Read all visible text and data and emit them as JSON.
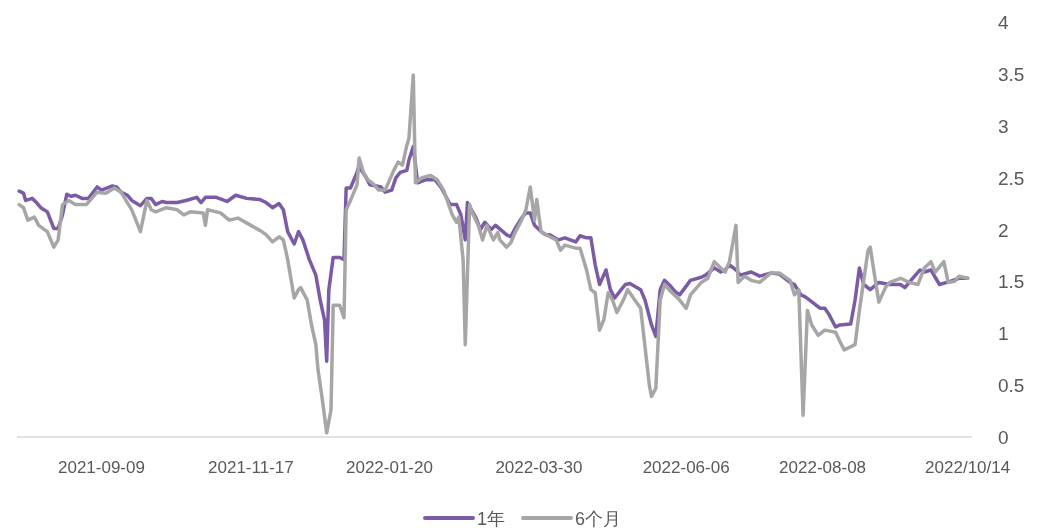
{
  "chart_data": {
    "type": "line",
    "xlim": [
      "2021-08-01",
      "2022-10-16"
    ],
    "ylim": [
      0,
      4
    ],
    "yticks": [
      0,
      0.5,
      1,
      1.5,
      2,
      2.5,
      3,
      3.5,
      4
    ],
    "xticks": [
      {
        "value": "2021-09-09",
        "label": "2021-09-09"
      },
      {
        "value": "2021-11-17",
        "label": "2021-11-17"
      },
      {
        "value": "2022-01-20",
        "label": "2022-01-20"
      },
      {
        "value": "2022-03-30",
        "label": "2022-03-30"
      },
      {
        "value": "2022-06-06",
        "label": "2022-06-06"
      },
      {
        "value": "2022-08-08",
        "label": "2022-08-08"
      },
      {
        "value": "2022-10-14",
        "label": "2022/10/14"
      }
    ],
    "grid": false,
    "legend": "bottom",
    "marker": "none",
    "line_style": "solid",
    "series": [
      {
        "name": "1年",
        "color": "#7b5aa6",
        "x": [
          "2021-08-02",
          "2021-08-04",
          "2021-08-05",
          "2021-08-08",
          "2021-08-10",
          "2021-08-12",
          "2021-08-15",
          "2021-08-18",
          "2021-08-20",
          "2021-08-22",
          "2021-08-24",
          "2021-08-26",
          "2021-08-28",
          "2021-08-31",
          "2021-09-03",
          "2021-09-07",
          "2021-09-09",
          "2021-09-14",
          "2021-09-16",
          "2021-09-18",
          "2021-09-21",
          "2021-09-23",
          "2021-09-27",
          "2021-09-30",
          "2021-10-02",
          "2021-10-04",
          "2021-10-07",
          "2021-10-09",
          "2021-10-14",
          "2021-10-18",
          "2021-10-23",
          "2021-10-25",
          "2021-10-27",
          "2021-11-01",
          "2021-11-06",
          "2021-11-10",
          "2021-11-15",
          "2021-11-21",
          "2021-11-24",
          "2021-11-27",
          "2021-11-30",
          "2021-12-02",
          "2021-12-04",
          "2021-12-07",
          "2021-12-09",
          "2021-12-11",
          "2021-12-14",
          "2021-12-17",
          "2021-12-19",
          "2021-12-21",
          "2021-12-22",
          "2021-12-23",
          "2021-12-25",
          "2021-12-28",
          "2021-12-30",
          "2021-12-31",
          "2022-01-02",
          "2022-01-05",
          "2022-01-06",
          "2022-01-07",
          "2022-01-09",
          "2022-01-11",
          "2022-01-14",
          "2022-01-16",
          "2022-01-18",
          "2022-01-21",
          "2022-01-23",
          "2022-01-25",
          "2022-01-28",
          "2022-01-29",
          "2022-01-31",
          "2022-02-02",
          "2022-02-06",
          "2022-02-10",
          "2022-02-13",
          "2022-02-15",
          "2022-02-17",
          "2022-02-20",
          "2022-02-22",
          "2022-02-24",
          "2022-02-25",
          "2022-03-01",
          "2022-03-03",
          "2022-03-05",
          "2022-03-08",
          "2022-03-10",
          "2022-03-15",
          "2022-03-17",
          "2022-03-19",
          "2022-03-22",
          "2022-03-24",
          "2022-03-26",
          "2022-03-28",
          "2022-03-31",
          "2022-04-02",
          "2022-04-04",
          "2022-04-08",
          "2022-04-11",
          "2022-04-16",
          "2022-04-18",
          "2022-04-21",
          "2022-04-23",
          "2022-04-25",
          "2022-04-27",
          "2022-04-30",
          "2022-05-02",
          "2022-05-04",
          "2022-05-07",
          "2022-05-09",
          "2022-05-11",
          "2022-05-16",
          "2022-05-18",
          "2022-05-21",
          "2022-05-23",
          "2022-05-25",
          "2022-05-27",
          "2022-05-30",
          "2022-06-01",
          "2022-06-03",
          "2022-06-08",
          "2022-06-13",
          "2022-06-15",
          "2022-06-19",
          "2022-06-22",
          "2022-06-24",
          "2022-06-26",
          "2022-06-29",
          "2022-07-01",
          "2022-07-06",
          "2022-07-10",
          "2022-07-15",
          "2022-07-19",
          "2022-07-24",
          "2022-07-26",
          "2022-07-29",
          "2022-07-31",
          "2022-08-02",
          "2022-08-05",
          "2022-08-07",
          "2022-08-09",
          "2022-08-11",
          "2022-08-14",
          "2022-08-16",
          "2022-08-21",
          "2022-08-23",
          "2022-08-25",
          "2022-08-27",
          "2022-08-30",
          "2022-09-03",
          "2022-09-08",
          "2022-09-13",
          "2022-09-15",
          "2022-09-17",
          "2022-09-22",
          "2022-09-24",
          "2022-09-27",
          "2022-09-29",
          "2022-10-01",
          "2022-10-06",
          "2022-10-10",
          "2022-10-14"
        ],
        "values": [
          2.37,
          2.35,
          2.28,
          2.3,
          2.26,
          2.21,
          2.17,
          2.01,
          2.01,
          2.14,
          2.34,
          2.32,
          2.33,
          2.3,
          2.3,
          2.41,
          2.38,
          2.42,
          2.41,
          2.36,
          2.33,
          2.28,
          2.23,
          2.3,
          2.3,
          2.24,
          2.27,
          2.26,
          2.26,
          2.28,
          2.31,
          2.26,
          2.31,
          2.31,
          2.27,
          2.33,
          2.3,
          2.29,
          2.26,
          2.21,
          2.25,
          2.19,
          1.98,
          1.86,
          1.98,
          1.9,
          1.71,
          1.56,
          1.32,
          1.13,
          0.73,
          1.42,
          1.73,
          1.73,
          1.71,
          2.4,
          2.4,
          2.55,
          2.62,
          2.57,
          2.51,
          2.43,
          2.42,
          2.41,
          2.36,
          2.38,
          2.5,
          2.55,
          2.57,
          2.67,
          2.8,
          2.45,
          2.48,
          2.48,
          2.4,
          2.32,
          2.24,
          2.24,
          2.14,
          1.9,
          2.26,
          2.11,
          2.0,
          2.07,
          2.0,
          2.04,
          1.95,
          1.93,
          2.01,
          2.11,
          2.16,
          2.16,
          2.04,
          1.98,
          1.95,
          1.95,
          1.9,
          1.92,
          1.88,
          1.94,
          1.92,
          1.92,
          1.66,
          1.47,
          1.61,
          1.42,
          1.34,
          1.42,
          1.47,
          1.48,
          1.42,
          1.32,
          1.08,
          0.97,
          1.42,
          1.51,
          1.45,
          1.4,
          1.37,
          1.51,
          1.54,
          1.56,
          1.63,
          1.59,
          1.61,
          1.66,
          1.61,
          1.56,
          1.59,
          1.55,
          1.58,
          1.57,
          1.49,
          1.47,
          1.37,
          1.35,
          1.32,
          1.27,
          1.24,
          1.24,
          1.18,
          1.06,
          1.08,
          1.09,
          1.32,
          1.63,
          1.47,
          1.42,
          1.49,
          1.47,
          1.47,
          1.44,
          1.49,
          1.61,
          1.59,
          1.61,
          1.54,
          1.47,
          1.5,
          1.53,
          1.53
        ]
      },
      {
        "name": "6个月",
        "color": "#a6a6a6",
        "x": [
          "2021-08-02",
          "2021-08-04",
          "2021-08-06",
          "2021-08-09",
          "2021-08-11",
          "2021-08-15",
          "2021-08-18",
          "2021-08-20",
          "2021-08-22",
          "2021-08-25",
          "2021-08-28",
          "2021-09-02",
          "2021-09-07",
          "2021-09-11",
          "2021-09-15",
          "2021-09-18",
          "2021-09-23",
          "2021-09-27",
          "2021-09-30",
          "2021-10-02",
          "2021-10-04",
          "2021-10-09",
          "2021-10-14",
          "2021-10-17",
          "2021-10-20",
          "2021-10-26",
          "2021-10-27",
          "2021-10-28",
          "2021-11-03",
          "2021-11-07",
          "2021-11-11",
          "2021-11-17",
          "2021-11-22",
          "2021-11-24",
          "2021-11-27",
          "2021-11-30",
          "2021-12-02",
          "2021-12-04",
          "2021-12-07",
          "2021-12-09",
          "2021-12-10",
          "2021-12-13",
          "2021-12-15",
          "2021-12-17",
          "2021-12-18",
          "2021-12-20",
          "2021-12-22",
          "2021-12-24",
          "2021-12-25",
          "2021-12-28",
          "2021-12-30",
          "2021-12-31",
          "2022-01-02",
          "2022-01-05",
          "2022-01-06",
          "2022-01-08",
          "2022-01-10",
          "2022-01-13",
          "2022-01-15",
          "2022-01-18",
          "2022-01-22",
          "2022-01-24",
          "2022-01-26",
          "2022-01-28",
          "2022-01-29",
          "2022-01-31",
          "2022-02-01",
          "2022-02-04",
          "2022-02-08",
          "2022-02-11",
          "2022-02-14",
          "2022-02-16",
          "2022-02-18",
          "2022-02-20",
          "2022-02-21",
          "2022-02-23",
          "2022-02-24",
          "2022-02-26",
          "2022-02-27",
          "2022-03-02",
          "2022-03-04",
          "2022-03-06",
          "2022-03-09",
          "2022-03-11",
          "2022-03-12",
          "2022-03-15",
          "2022-03-17",
          "2022-03-19",
          "2022-03-22",
          "2022-03-24",
          "2022-03-26",
          "2022-03-28",
          "2022-03-29",
          "2022-03-31",
          "2022-04-04",
          "2022-04-07",
          "2022-04-09",
          "2022-04-11",
          "2022-04-16",
          "2022-04-18",
          "2022-04-21",
          "2022-04-23",
          "2022-04-25",
          "2022-04-27",
          "2022-04-29",
          "2022-05-01",
          "2022-05-03",
          "2022-05-05",
          "2022-05-08",
          "2022-05-10",
          "2022-05-14",
          "2022-05-16",
          "2022-05-20",
          "2022-05-21",
          "2022-05-23",
          "2022-05-25",
          "2022-05-27",
          "2022-05-30",
          "2022-06-03",
          "2022-06-06",
          "2022-06-08",
          "2022-06-13",
          "2022-06-16",
          "2022-06-19",
          "2022-06-22",
          "2022-06-24",
          "2022-06-26",
          "2022-06-29",
          "2022-06-30",
          "2022-07-03",
          "2022-07-06",
          "2022-07-10",
          "2022-07-15",
          "2022-07-19",
          "2022-07-24",
          "2022-07-26",
          "2022-07-28",
          "2022-07-30",
          "2022-08-01",
          "2022-08-03",
          "2022-08-06",
          "2022-08-09",
          "2022-08-14",
          "2022-08-16",
          "2022-08-18",
          "2022-08-21",
          "2022-08-23",
          "2022-08-25",
          "2022-08-29",
          "2022-08-30",
          "2022-09-01",
          "2022-09-03",
          "2022-09-06",
          "2022-09-08",
          "2022-09-13",
          "2022-09-17",
          "2022-09-21",
          "2022-09-24",
          "2022-09-27",
          "2022-09-29",
          "2022-10-03",
          "2022-10-05",
          "2022-10-08",
          "2022-10-10",
          "2022-10-14"
        ],
        "values": [
          2.24,
          2.21,
          2.09,
          2.12,
          2.04,
          1.98,
          1.83,
          1.9,
          2.24,
          2.28,
          2.24,
          2.24,
          2.36,
          2.35,
          2.4,
          2.36,
          2.19,
          1.98,
          2.28,
          2.19,
          2.17,
          2.21,
          2.19,
          2.14,
          2.17,
          2.16,
          2.04,
          2.19,
          2.16,
          2.09,
          2.11,
          2.04,
          1.98,
          1.95,
          1.88,
          1.93,
          1.9,
          1.71,
          1.34,
          1.42,
          1.44,
          1.32,
          1.08,
          0.89,
          0.65,
          0.36,
          0.04,
          0.26,
          1.27,
          1.27,
          1.15,
          2.19,
          2.28,
          2.43,
          2.69,
          2.55,
          2.48,
          2.43,
          2.38,
          2.38,
          2.57,
          2.65,
          2.62,
          2.81,
          2.88,
          3.49,
          2.45,
          2.5,
          2.52,
          2.48,
          2.38,
          2.26,
          2.14,
          2.07,
          2.12,
          1.71,
          0.89,
          2.24,
          2.17,
          2.04,
          1.9,
          2.04,
          1.9,
          1.97,
          1.9,
          1.83,
          1.87,
          1.97,
          2.09,
          2.19,
          2.41,
          2.09,
          2.29,
          1.98,
          1.93,
          1.9,
          1.8,
          1.85,
          1.82,
          1.82,
          1.61,
          1.42,
          1.39,
          1.03,
          1.13,
          1.39,
          1.32,
          1.2,
          1.32,
          1.42,
          1.3,
          1.24,
          0.5,
          0.39,
          0.47,
          1.32,
          1.47,
          1.4,
          1.32,
          1.24,
          1.37,
          1.49,
          1.53,
          1.69,
          1.63,
          1.59,
          1.69,
          2.04,
          1.49,
          1.55,
          1.51,
          1.49,
          1.58,
          1.58,
          1.51,
          1.37,
          1.42,
          0.21,
          1.22,
          1.08,
          0.98,
          1.03,
          1.01,
          0.92,
          0.84,
          0.87,
          0.89,
          1.22,
          1.8,
          1.83,
          1.56,
          1.3,
          1.44,
          1.49,
          1.53,
          1.49,
          1.47,
          1.63,
          1.69,
          1.59,
          1.69,
          1.49,
          1.5,
          1.55,
          1.53
        ]
      }
    ]
  }
}
